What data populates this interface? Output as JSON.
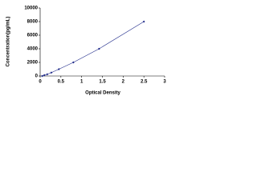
{
  "chart_data": {
    "type": "scatter",
    "x_label": "Optical Density",
    "y_label": "Concentration(pg/mL)",
    "x": [
      0.05,
      0.1,
      0.17,
      0.27,
      0.45,
      0.8,
      1.42,
      2.5
    ],
    "values": [
      0,
      125,
      250,
      500,
      1000,
      2000,
      4000,
      8000
    ],
    "color": "#1f2a8a",
    "xlim": [
      0,
      3
    ],
    "xticks": [
      0,
      0.5,
      1,
      1.5,
      2,
      2.5,
      3
    ],
    "ylim": [
      0,
      10000
    ],
    "yticks": [
      0,
      2000,
      4000,
      6000,
      8000,
      10000
    ]
  }
}
